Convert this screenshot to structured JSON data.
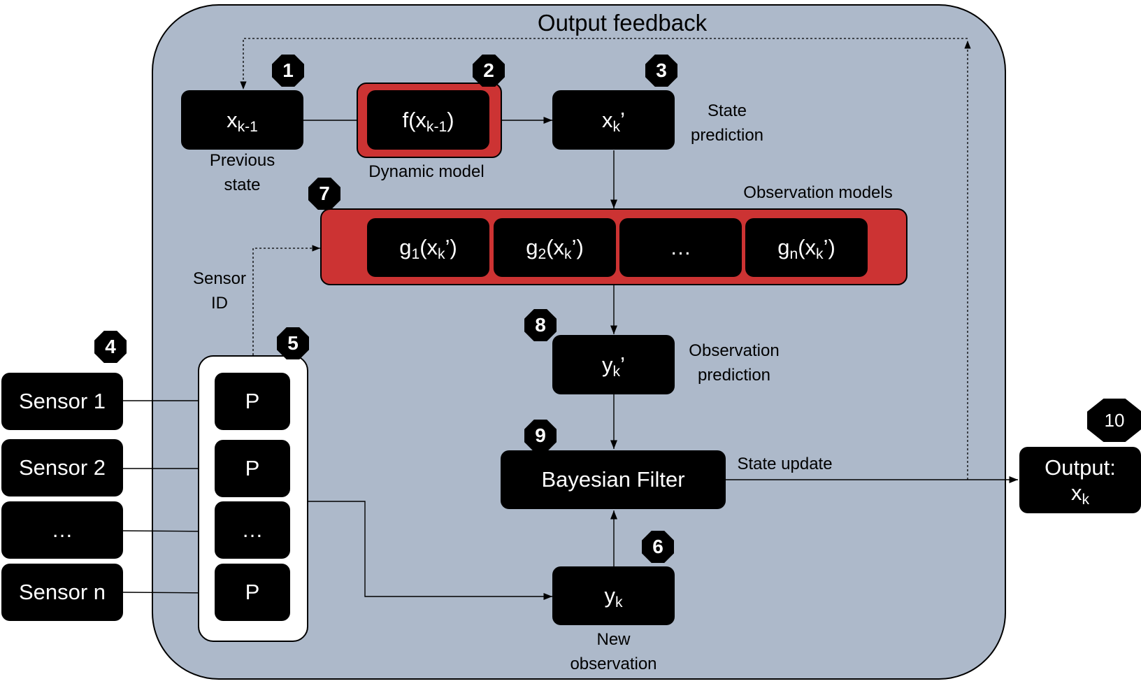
{
  "title": "Output feedback",
  "nodes": {
    "prev_state": "x_{k-1}",
    "dynamic_model": "f(x_{k-1})",
    "state_pred": "x_k’",
    "g1": "g_1(x_k’)",
    "g2": "g_2(x_k’)",
    "g_dots": "…",
    "gn": "g_n(x_k’)",
    "obs_pred": "y_k’",
    "bayes": "Bayesian Filter",
    "new_obs": "y_k",
    "output": "Output:\nx_k",
    "sensor1": "Sensor 1",
    "sensor2": "Sensor 2",
    "sensor_dots": "…",
    "sensorn": "Sensor n",
    "p1": "P",
    "p2": "P",
    "p_dots": "…",
    "pn": "P"
  },
  "labels": {
    "previous_state": "Previous\nstate",
    "dynamic_model": "Dynamic model",
    "state_prediction": "State\nprediction",
    "observation_models": "Observation models",
    "sensor_id": "Sensor\nID",
    "observation_prediction": "Observation\nprediction",
    "state_update": "State update",
    "new_observation": "New\nobservation"
  },
  "badges": [
    "1",
    "2",
    "3",
    "4",
    "5",
    "6",
    "7",
    "8",
    "9",
    "10"
  ],
  "colors": {
    "panel": "#adb9ca",
    "model_highlight": "#cc3333",
    "node": "#000000",
    "node_text": "#ffffff"
  }
}
